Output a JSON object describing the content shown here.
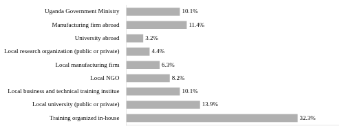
{
  "chart_data": {
    "type": "bar",
    "orientation": "horizontal",
    "categories": [
      "Uganda Government Ministry",
      "Manufacturing firm abroad",
      "University abroad",
      "Local research organization (public or private)",
      "Local manufacturing firm",
      "Local NGO",
      "Local business and technical training institue",
      "Local university (public or private)",
      "Training organized in-house"
    ],
    "values": [
      10.1,
      11.4,
      3.2,
      4.4,
      6.3,
      8.2,
      10.1,
      13.9,
      32.3
    ],
    "value_labels": [
      "10.1%",
      "11.4%",
      "3.2%",
      "4.4%",
      "6.3%",
      "8.2%",
      "10.1%",
      "13.9%",
      "32.3%"
    ],
    "color": "#b0b0b0",
    "xlim": [
      0,
      40
    ],
    "grid": false,
    "data_labels": true,
    "tick_labels": "y"
  }
}
